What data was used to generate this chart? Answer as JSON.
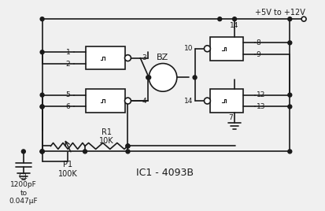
{
  "bg_color": "#f0f0f0",
  "line_color": "#1a1a1a",
  "title": "IC1 - 4093B",
  "supply_label": "+5V to +12V",
  "bz_label": "BZ",
  "r1_label": "R1\n10K",
  "p1_label": "P1\n100K",
  "c1_label": "C1\n1200pF\nto\n0.047μF",
  "pin_labels": {
    "p1_top": "1",
    "p1_bot": "2",
    "p1_out": "3",
    "p2_top": "5",
    "p2_bot": "6",
    "p2_out": "4",
    "t1_in_top": "10",
    "t1_vcc": "14",
    "t1_out_top": "8",
    "t1_out_bot": "9",
    "t2_in_top": "14",
    "t2_in_bot": "7",
    "t2_out_top": "12",
    "t2_out_bot": "13"
  },
  "fig_width": 4.13,
  "fig_height": 2.68
}
